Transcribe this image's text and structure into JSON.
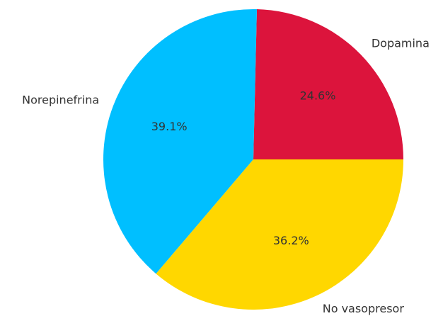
{
  "chart_data": {
    "type": "pie",
    "categories": [
      "Dopamina",
      "Norepinefrina",
      "No vasopresor"
    ],
    "values": [
      24.6,
      39.1,
      36.2
    ],
    "value_labels": [
      "24.6%",
      "39.1%",
      "36.2%"
    ],
    "colors": [
      "#dc143c",
      "#00bfff",
      "#ffd700"
    ]
  }
}
